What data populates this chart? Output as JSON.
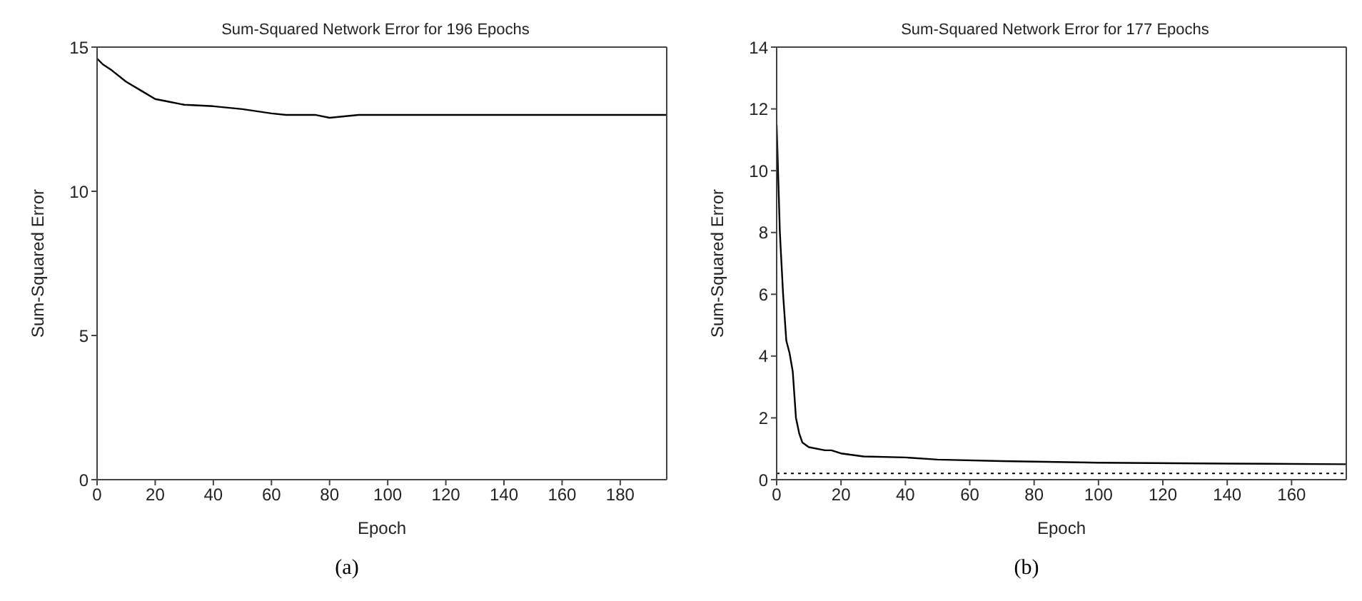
{
  "chart_data": [
    {
      "type": "line",
      "title": "Sum-Squared Network Error for 196 Epochs",
      "xlabel": "Epoch",
      "ylabel": "Sum-Squared Error",
      "annotations": [
        "(a)"
      ],
      "xlim": [
        0,
        196
      ],
      "xticks": [
        0,
        20,
        40,
        60,
        80,
        100,
        120,
        140,
        160,
        180
      ],
      "ylim": [
        0,
        15
      ],
      "yticks": [
        0,
        5,
        10,
        15
      ],
      "series": [
        {
          "color": "#000000",
          "x": [
            0,
            2,
            5,
            10,
            15,
            20,
            25,
            30,
            40,
            50,
            60,
            65,
            75,
            80,
            85,
            90,
            120,
            160,
            196
          ],
          "values": [
            14.6,
            14.4,
            14.2,
            13.8,
            13.5,
            13.2,
            13.1,
            13.0,
            12.95,
            12.85,
            12.7,
            12.65,
            12.65,
            12.55,
            12.6,
            12.65,
            12.65,
            12.65,
            12.65
          ]
        }
      ]
    },
    {
      "type": "line",
      "title": "Sum-Squared Network Error for 177 Epochs",
      "xlabel": "Epoch",
      "ylabel": "Sum-Squared Error",
      "annotations": [
        "(b)"
      ],
      "xlim": [
        0,
        177
      ],
      "xticks": [
        0,
        20,
        40,
        60,
        80,
        100,
        120,
        140,
        160
      ],
      "ylim": [
        0,
        14
      ],
      "yticks": [
        0,
        2,
        4,
        6,
        8,
        10,
        12,
        14
      ],
      "ref_lines": [
        {
          "axis": "y",
          "value": 0.2,
          "color": "#000000",
          "line_style": "dotted"
        }
      ],
      "series": [
        {
          "color": "#000000",
          "x": [
            0,
            1,
            2,
            3,
            4,
            5,
            6,
            7,
            8,
            10,
            15,
            17,
            20,
            27,
            40,
            50,
            70,
            100,
            140,
            177
          ],
          "values": [
            11.5,
            8,
            6,
            4.5,
            4.1,
            3.5,
            2,
            1.5,
            1.2,
            1.05,
            0.95,
            0.95,
            0.85,
            0.75,
            0.72,
            0.65,
            0.6,
            0.55,
            0.52,
            0.5
          ]
        }
      ]
    }
  ]
}
